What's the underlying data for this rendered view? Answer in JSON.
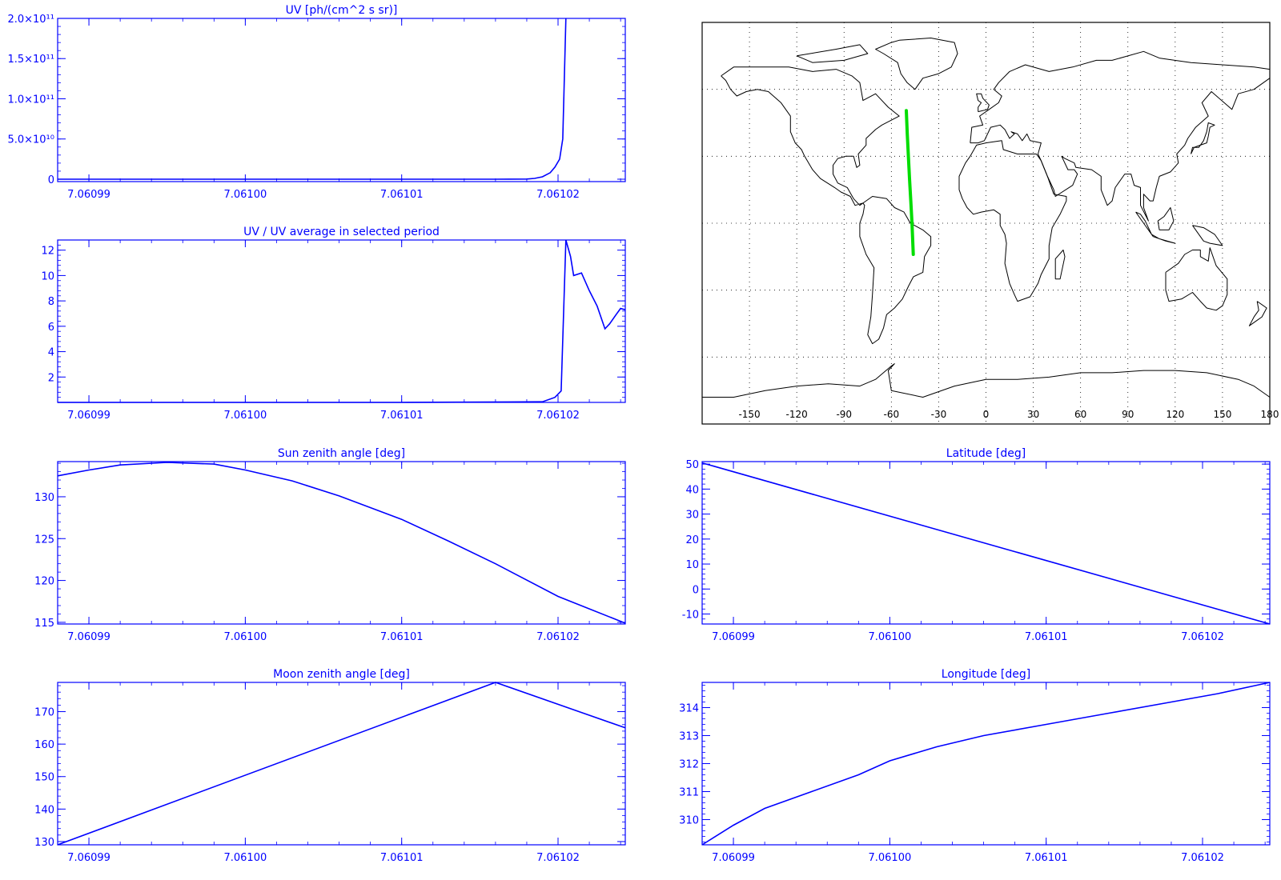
{
  "colors": {
    "axis": "#0000ff",
    "series": "#0000ff",
    "map_lines": "#000000",
    "track": "#00dd00",
    "background": "#ffffff"
  },
  "shared_x_tick_labels": [
    "7.06099",
    "7.06100",
    "7.06101",
    "7.06102"
  ],
  "chart_data": [
    {
      "id": "uv",
      "type": "line",
      "title": "UV [ph/(cm^2 s sr)]",
      "xlim": [
        7.060988,
        7.0610243
      ],
      "ylim": [
        -3000000000.0,
        200000000000.0
      ],
      "x_ticks": [
        7.06099,
        7.061,
        7.06101,
        7.06102
      ],
      "x_tick_labels": [
        "7.06099",
        "7.06100",
        "7.06101",
        "7.06102"
      ],
      "y_ticks": [
        0,
        50000000000.0,
        100000000000.0,
        150000000000.0,
        200000000000.0
      ],
      "y_tick_labels": [
        "0",
        "5.0×10¹⁰",
        "1.0×10¹¹",
        "1.5×10¹¹",
        "2.0×10¹¹"
      ],
      "series": [
        {
          "x": [
            7.060988,
            7.06101,
            7.061016,
            7.061018,
            7.0610185,
            7.061019,
            7.0610195,
            7.0610198,
            7.0610201,
            7.0610203,
            7.0610205
          ],
          "y": [
            0,
            0,
            0,
            200000000.0,
            1000000000.0,
            3000000000.0,
            8000000000.0,
            15000000000.0,
            25000000000.0,
            50000000000.0,
            200000000000.0
          ]
        }
      ]
    },
    {
      "id": "uv-ratio",
      "type": "line",
      "title": "UV / UV average in selected period",
      "xlim": [
        7.060988,
        7.0610243
      ],
      "ylim": [
        0,
        12.8
      ],
      "x_ticks": [
        7.06099,
        7.061,
        7.06101,
        7.06102
      ],
      "x_tick_labels": [
        "7.06099",
        "7.06100",
        "7.06101",
        "7.06102"
      ],
      "y_ticks": [
        2,
        4,
        6,
        8,
        10,
        12
      ],
      "y_tick_labels": [
        "2",
        "4",
        "6",
        "8",
        "10",
        "12"
      ],
      "series": [
        {
          "x": [
            7.060988,
            7.06101,
            7.061019,
            7.0610198,
            7.0610202,
            7.0610205,
            7.0610208,
            7.061021,
            7.0610215,
            7.061022,
            7.0610225,
            7.061023,
            7.0610233,
            7.0610237,
            7.061024,
            7.0610243
          ],
          "y": [
            0,
            0,
            0.05,
            0.4,
            0.9,
            12.8,
            11.5,
            10.0,
            10.2,
            8.8,
            7.6,
            5.8,
            6.2,
            6.9,
            7.4,
            7.3
          ]
        }
      ]
    },
    {
      "id": "sun-zenith",
      "type": "line",
      "title": "Sun zenith angle [deg]",
      "xlim": [
        7.060988,
        7.0610243
      ],
      "ylim": [
        114.8,
        134.2
      ],
      "x_ticks": [
        7.06099,
        7.061,
        7.06101,
        7.06102
      ],
      "x_tick_labels": [
        "7.06099",
        "7.06100",
        "7.06101",
        "7.06102"
      ],
      "y_ticks": [
        115,
        120,
        125,
        130
      ],
      "y_tick_labels": [
        "115",
        "120",
        "125",
        "130"
      ],
      "series": [
        {
          "x": [
            7.060988,
            7.06099,
            7.060992,
            7.060995,
            7.060998,
            7.061,
            7.061003,
            7.061006,
            7.06101,
            7.061013,
            7.061016,
            7.06102,
            7.0610243
          ],
          "y": [
            132.5,
            133.2,
            133.8,
            134.1,
            133.9,
            133.2,
            131.9,
            130.1,
            127.3,
            124.7,
            122.0,
            118.1,
            114.9
          ]
        }
      ]
    },
    {
      "id": "latitude",
      "type": "line",
      "title": "Latitude [deg]",
      "xlim": [
        7.060988,
        7.0610243
      ],
      "ylim": [
        -14,
        51
      ],
      "x_ticks": [
        7.06099,
        7.061,
        7.06101,
        7.06102
      ],
      "x_tick_labels": [
        "7.06099",
        "7.06100",
        "7.06101",
        "7.06102"
      ],
      "y_ticks": [
        -10,
        0,
        10,
        20,
        30,
        40,
        50
      ],
      "y_tick_labels": [
        "-10",
        "0",
        "10",
        "20",
        "30",
        "40",
        "50"
      ],
      "series": [
        {
          "x": [
            7.060988,
            7.0610243
          ],
          "y": [
            50.5,
            -14
          ]
        }
      ]
    },
    {
      "id": "moon-zenith",
      "type": "line",
      "title": "Moon zenith angle [deg]",
      "xlim": [
        7.060988,
        7.0610243
      ],
      "ylim": [
        129,
        179
      ],
      "x_ticks": [
        7.06099,
        7.061,
        7.06101,
        7.06102
      ],
      "x_tick_labels": [
        "7.06099",
        "7.06100",
        "7.06101",
        "7.06102"
      ],
      "y_ticks": [
        130,
        140,
        150,
        160,
        170
      ],
      "y_tick_labels": [
        "130",
        "140",
        "150",
        "160",
        "170"
      ],
      "series": [
        {
          "x": [
            7.060988,
            7.061016,
            7.0610243
          ],
          "y": [
            129,
            179,
            165
          ]
        }
      ]
    },
    {
      "id": "longitude",
      "type": "line",
      "title": "Longitude [deg]",
      "xlim": [
        7.060988,
        7.0610243
      ],
      "ylim": [
        309.1,
        314.9
      ],
      "x_ticks": [
        7.06099,
        7.061,
        7.06101,
        7.06102
      ],
      "x_tick_labels": [
        "7.06099",
        "7.06100",
        "7.06101",
        "7.06102"
      ],
      "y_ticks": [
        310,
        311,
        312,
        313,
        314
      ],
      "y_tick_labels": [
        "310",
        "311",
        "312",
        "313",
        "314"
      ],
      "series": [
        {
          "x": [
            7.060988,
            7.06099,
            7.060992,
            7.060995,
            7.060998,
            7.061,
            7.061003,
            7.061006,
            7.06101,
            7.061014,
            7.061018,
            7.061021,
            7.0610243
          ],
          "y": [
            309.1,
            309.8,
            310.4,
            311.0,
            311.6,
            312.1,
            312.6,
            313.0,
            313.4,
            313.8,
            314.2,
            314.5,
            314.9
          ]
        }
      ]
    }
  ],
  "map": {
    "type": "map",
    "lon_ticks": [
      -150,
      -120,
      -90,
      -60,
      -30,
      0,
      30,
      60,
      90,
      120,
      150,
      180
    ],
    "lon_tick_labels": [
      "-150",
      "-120",
      "-90",
      "-60",
      "-30",
      "0",
      "30",
      "60",
      "90",
      "120",
      "150",
      "180"
    ],
    "lat_range": [
      -90,
      90
    ],
    "lon_range": [
      -180,
      180
    ],
    "track": {
      "lon": [
        -50.5,
        -49.9,
        -49.2,
        -48.5,
        -47.7,
        -46.9,
        -46.1
      ],
      "lat": [
        50.5,
        40,
        30,
        20,
        10,
        0,
        -14
      ]
    }
  }
}
